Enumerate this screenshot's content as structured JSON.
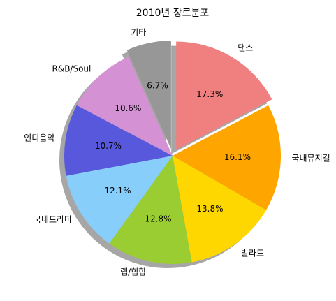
{
  "chart_data": {
    "type": "pie",
    "title": "2010년 장르분포",
    "start_angle_deg": 90,
    "direction": "clockwise",
    "shadow": true,
    "slices": [
      {
        "label": "댄스",
        "pct_label": "17.3%",
        "value": 17.3,
        "color": "#f08080",
        "exploded": true
      },
      {
        "label": "국내뮤지컬",
        "pct_label": "16.1%",
        "value": 16.1,
        "color": "#ffa500",
        "exploded": false
      },
      {
        "label": "발라드",
        "pct_label": "13.8%",
        "value": 13.8,
        "color": "#ffd700",
        "exploded": false
      },
      {
        "label": "랩/힙합",
        "pct_label": "12.8%",
        "value": 12.8,
        "color": "#9acd32",
        "exploded": false
      },
      {
        "label": "국내드라마",
        "pct_label": "12.1%",
        "value": 12.1,
        "color": "#87cefa",
        "exploded": false
      },
      {
        "label": "인디음악",
        "pct_label": "10.7%",
        "value": 10.7,
        "color": "#5858dc",
        "exploded": false
      },
      {
        "label": "R&B/Soul",
        "pct_label": "10.6%",
        "value": 10.6,
        "color": "#d492d4",
        "exploded": false
      },
      {
        "label": "기타",
        "pct_label": "6.7%",
        "value": 6.7,
        "color": "#979797",
        "exploded": true
      }
    ]
  }
}
